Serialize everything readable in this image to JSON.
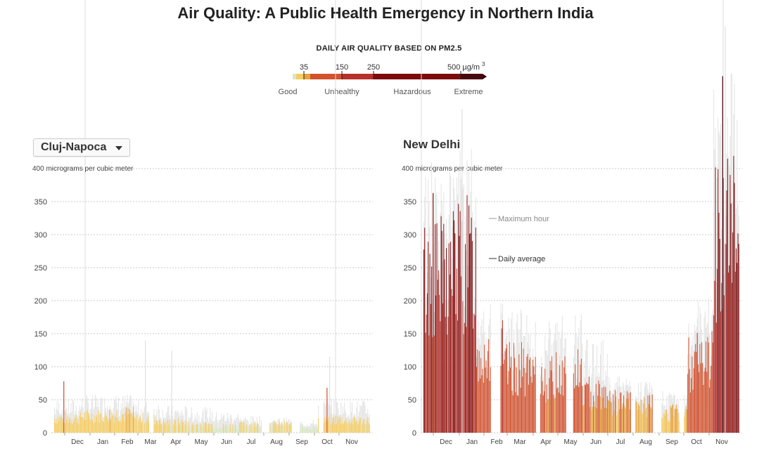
{
  "title": "Air Quality: A Public Health Emergency in Northern India",
  "legend": {
    "title": "DAILY AIR QUALITY BASED ON PM2.5",
    "ticks": [
      "35",
      "150",
      "250",
      "500 µg/m"
    ],
    "unit_superscript": "3",
    "categories": [
      "Good",
      "Unhealthy",
      "Hazardous",
      "Extreme"
    ],
    "colors": [
      "#d9e8c4",
      "#f6cd61",
      "#e8a33a",
      "#d2522e",
      "#b8302a",
      "#7e0b0b",
      "#4a0810",
      "#2a0a14"
    ]
  },
  "left_panel": {
    "city_selector": "Cluj-Napoca",
    "caret_icon": "caret-down-icon"
  },
  "right_panel": {
    "city": "New Delhi",
    "annotation_max": "Maximum hour",
    "annotation_avg": "Daily average"
  },
  "chart_data": [
    {
      "type": "bar",
      "city": "Cluj-Napoca",
      "ylabel_top": "400 micrograms per cubic meter",
      "yticks": [
        0,
        50,
        100,
        150,
        200,
        250,
        300,
        350,
        400
      ],
      "ylim": [
        0,
        400
      ],
      "months": [
        "Dec",
        "Jan",
        "Feb",
        "Mar",
        "Apr",
        "May",
        "Jun",
        "Jul",
        "Aug",
        "Sep",
        "Oct",
        "Nov"
      ],
      "grid": true,
      "series": [
        {
          "name": "Maximum hour",
          "monthly_typical": [
            40,
            45,
            45,
            38,
            32,
            30,
            25,
            20,
            18,
            15,
            40,
            38
          ],
          "peaks": [
            {
              "month": "Mar",
              "value": 140
            },
            {
              "month": "Apr",
              "value": 124
            },
            {
              "month": "Oct",
              "value": 115
            }
          ]
        },
        {
          "name": "Daily average",
          "monthly_typical": [
            22,
            25,
            28,
            20,
            15,
            12,
            10,
            12,
            12,
            8,
            20,
            18
          ],
          "peaks": [
            {
              "month": "Dec",
              "value": 78
            },
            {
              "month": "Oct",
              "value": 68
            }
          ]
        }
      ]
    },
    {
      "type": "bar",
      "city": "New Delhi",
      "ylabel_top": "400 micrograms per cubic meter",
      "yticks": [
        0,
        50,
        100,
        150,
        200,
        250,
        300,
        350,
        400
      ],
      "ylim": [
        0,
        400
      ],
      "months": [
        "Dec",
        "Jan",
        "Feb",
        "Mar",
        "Apr",
        "May",
        "Jun",
        "Jul",
        "Aug",
        "Sep",
        "Oct",
        "Nov"
      ],
      "grid": true,
      "series": [
        {
          "name": "Maximum hour",
          "monthly_typical": [
            320,
            340,
            170,
            150,
            130,
            140,
            110,
            70,
            60,
            50,
            160,
            420
          ],
          "peaks": [
            {
              "month": "Jan",
              "value": 490
            },
            {
              "month": "Nov",
              "value": 615
            }
          ]
        },
        {
          "name": "Daily average",
          "monthly_typical": [
            230,
            250,
            120,
            95,
            80,
            90,
            60,
            45,
            40,
            30,
            110,
            300
          ],
          "peaks": [
            {
              "month": "Dec",
              "value": 363
            },
            {
              "month": "Nov",
              "value": 540
            }
          ]
        }
      ]
    }
  ]
}
